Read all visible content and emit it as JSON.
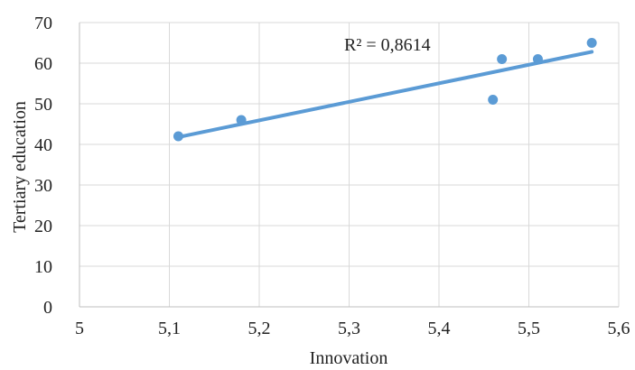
{
  "chart_data": {
    "type": "scatter",
    "title": "",
    "xlabel": "Innovation",
    "ylabel": "Tertiary education",
    "xlim": [
      5,
      5.6
    ],
    "ylim": [
      0,
      70
    ],
    "x_ticks": [
      5,
      5.1,
      5.2,
      5.3,
      5.4,
      5.5,
      5.6
    ],
    "x_tick_labels": [
      "5",
      "5,1",
      "5,2",
      "5,3",
      "5,4",
      "5,5",
      "5,6"
    ],
    "y_ticks": [
      0,
      10,
      20,
      30,
      40,
      50,
      60,
      70
    ],
    "y_tick_labels": [
      "0",
      "10",
      "20",
      "30",
      "40",
      "50",
      "60",
      "70"
    ],
    "grid": "horizontal",
    "legend": "none",
    "series": [
      {
        "x": [
          5.11,
          5.18,
          5.46,
          5.47,
          5.51,
          5.57
        ],
        "y": [
          42,
          46,
          51,
          61,
          61,
          65
        ]
      }
    ],
    "trendline": {
      "type": "linear",
      "x": [
        5.11,
        5.57
      ],
      "y": [
        41.8,
        62.8
      ],
      "annotation": "R² = 0,8614"
    },
    "colors": {
      "series": "#5b9bd5",
      "grid": "#d9d9d9",
      "axis": "#bfbfbf"
    }
  }
}
